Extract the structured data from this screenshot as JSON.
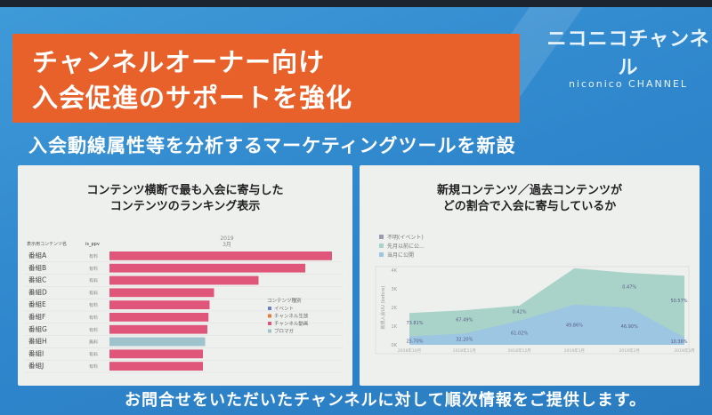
{
  "title_lines": [
    "チャンネルオーナー向け",
    "入会促進のサポートを強化"
  ],
  "logo": {
    "jp": "ニコニコチャンネル",
    "en": "niconico CHANNEL"
  },
  "subtitle": "入会動線属性等を分析するマーケティングツールを新設",
  "footer": "お問合せをいただいたチャンネルに対して順次情報をご提供します。",
  "colors": {
    "slide": "#2f86cc",
    "title_box": "#e8612a",
    "bar": "#e0567a",
    "bar_free": "#9fc3cc",
    "area_old": "#a9d3c8",
    "area_new": "#9cc6e2"
  },
  "left_panel": {
    "title_lines": [
      "コンテンツ横断で最も入会に寄与した",
      "コンテンツのランキング表示"
    ]
  },
  "right_panel": {
    "title_lines": [
      "新規コンテンツ／過去コンテンツが",
      "どの割合で入会に寄与しているか"
    ]
  },
  "chart_data": [
    {
      "type": "bar",
      "orientation": "horizontal",
      "header": {
        "period_year": "2019",
        "period_month": "3月",
        "col_name": "表示用コンテンツ名",
        "col_pay": "is_ppv"
      },
      "categories": [
        "番組A",
        "番組B",
        "番組C",
        "番組D",
        "番組E",
        "番組F",
        "番組G",
        "番組H",
        "番組I",
        "番組J"
      ],
      "pay": [
        "有料",
        "有料",
        "有料",
        "有料",
        "有料",
        "有料",
        "有料",
        "無料",
        "有料",
        "有料"
      ],
      "types": [
        "チャンネル動画",
        "チャンネル動画",
        "チャンネル動画",
        "チャンネル動画",
        "チャンネル動画",
        "チャンネル動画",
        "チャンネル動画",
        "ブロマガ",
        "チャンネル動画",
        "チャンネル動画"
      ],
      "values": [
        100,
        88,
        67,
        47,
        45,
        44.5,
        44,
        43,
        42,
        42
      ],
      "legend": {
        "title": "コンテンツ種別",
        "items": [
          {
            "label": "イベント",
            "color": "#6b7fc4"
          },
          {
            "label": "チャンネル生放",
            "color": "#e8793a"
          },
          {
            "label": "チャンネル動画",
            "color": "#e0567a"
          },
          {
            "label": "ブロマガ",
            "color": "#9fc3cc"
          }
        ],
        "position": "right"
      }
    },
    {
      "type": "area",
      "stacked": true,
      "x": [
        "2018年10月",
        "2018年11月",
        "2018年12月",
        "2019年1月",
        "2019年2月",
        "2019年3月"
      ],
      "ylabel": "新規入会UU (before)",
      "yticks": [
        "0K",
        "1K",
        "2K",
        "3K",
        "4K"
      ],
      "ylim": [
        0,
        4000
      ],
      "legend": [
        {
          "label": "不明(イベント)",
          "color": "#9a9ab0"
        },
        {
          "label": "先月以前に公...",
          "color": "#a9d3c8"
        },
        {
          "label": "当月に公開",
          "color": "#9cc6e2"
        }
      ],
      "series": [
        {
          "name": "当月に公開",
          "values": [
            450,
            600,
            1300,
            2150,
            2000,
            400
          ]
        },
        {
          "name": "先月以前に公開",
          "values": [
            1250,
            1250,
            800,
            1950,
            1850,
            3300
          ]
        }
      ],
      "labels_new": [
        "25.70%",
        "32.20%",
        "61.02%",
        "49.86%",
        "46.90%",
        "10.36%"
      ],
      "labels_old": [
        "73.81%",
        "67.49%",
        "0.42%",
        "",
        "0.47%",
        "50.57%"
      ]
    }
  ]
}
